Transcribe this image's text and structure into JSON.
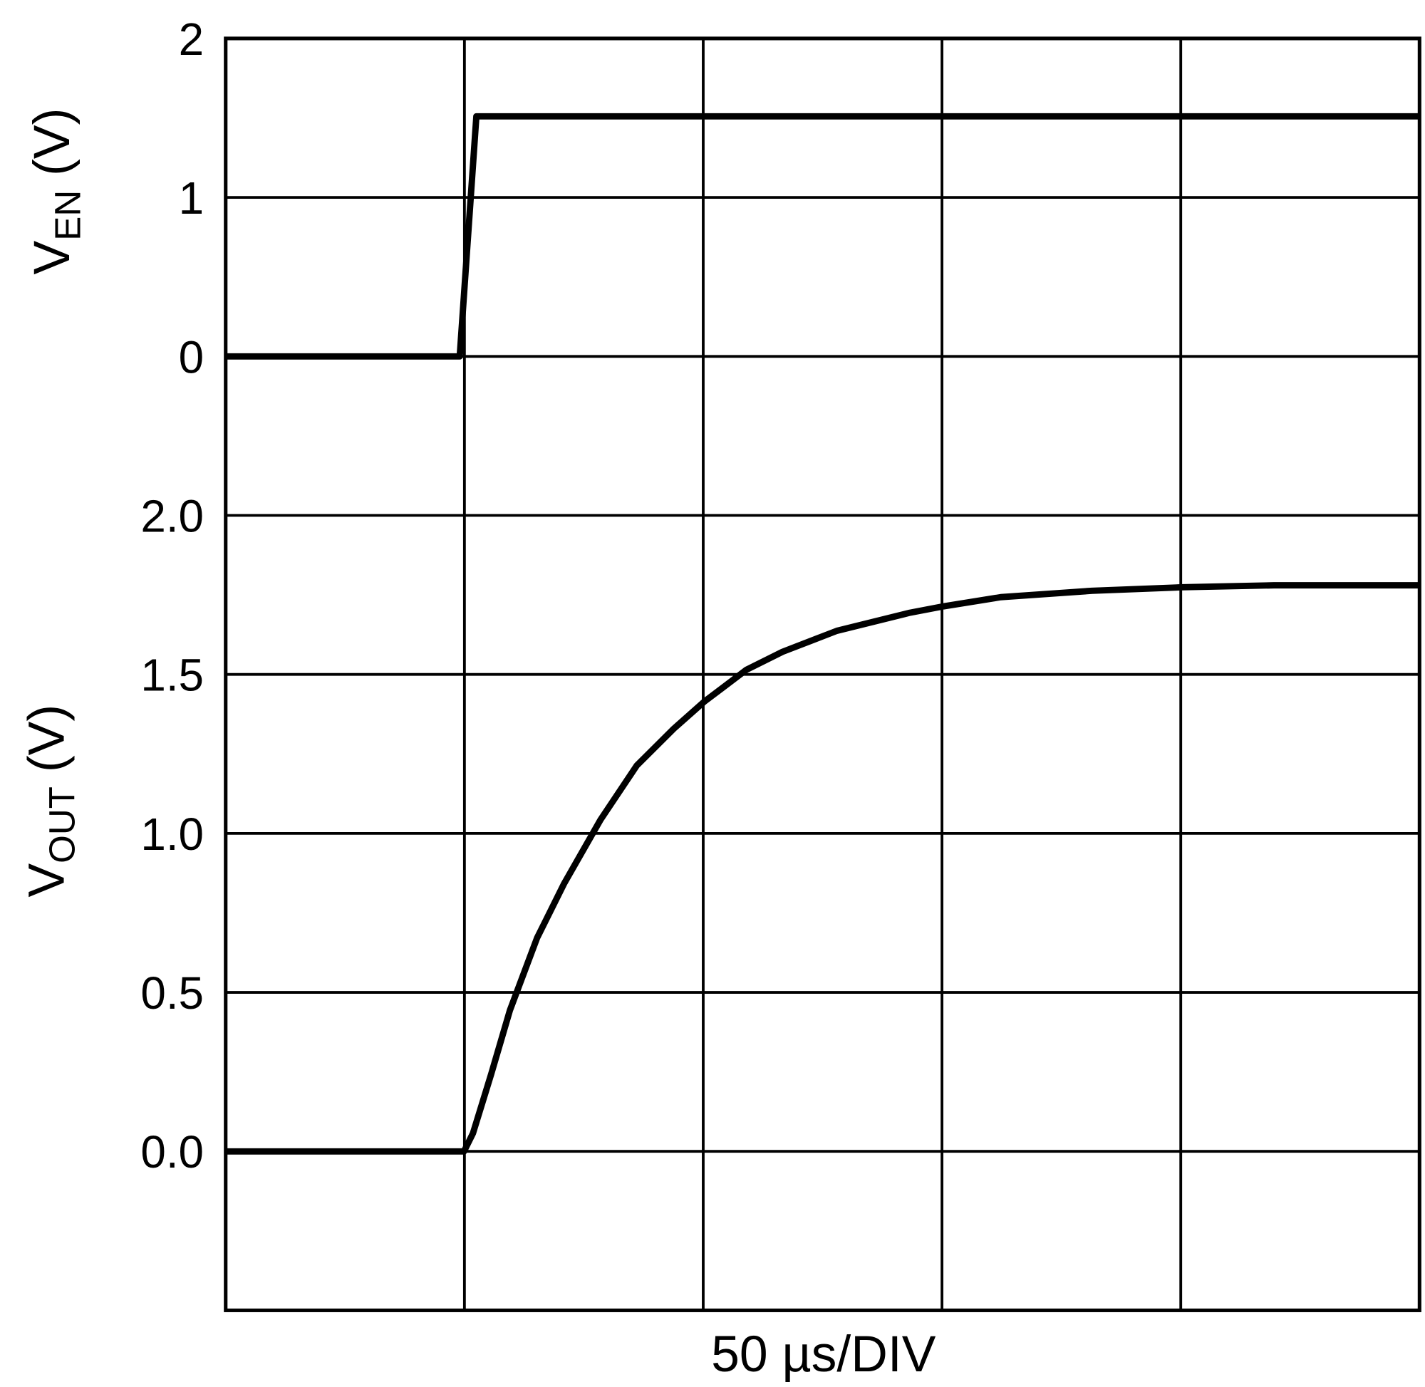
{
  "chart_data": {
    "type": "line",
    "title": "",
    "xlabel": "50 µs/DIV",
    "x_unit": "µs",
    "xlim": [
      0,
      250
    ],
    "x_divisions": 5,
    "grid": true,
    "panels": [
      {
        "name": "enable",
        "ylabel_main": "V",
        "ylabel_sub": "EN",
        "ylabel_unit": " (V)",
        "ticks": [
          {
            "value": 0,
            "label": "0"
          },
          {
            "value": 1,
            "label": "1"
          },
          {
            "value": 2,
            "label": "2"
          }
        ]
      },
      {
        "name": "output",
        "ylabel_main": "V",
        "ylabel_sub": "OUT",
        "ylabel_unit": " (V)",
        "ticks": [
          {
            "value": 0.0,
            "label": "0.0"
          },
          {
            "value": 0.5,
            "label": "0.5"
          },
          {
            "value": 1.0,
            "label": "1.0"
          },
          {
            "value": 1.5,
            "label": "1.5"
          },
          {
            "value": 2.0,
            "label": "2.0"
          }
        ]
      }
    ],
    "series": [
      {
        "name": "VEN",
        "panel": "enable",
        "x": [
          0,
          49,
          52.5,
          250
        ],
        "y": [
          0,
          0,
          1.51,
          1.51
        ]
      },
      {
        "name": "VOUT",
        "panel": "output",
        "x": [
          0,
          49.9,
          51.8,
          55.6,
          59.5,
          65.2,
          70.9,
          78.5,
          86.1,
          93.8,
          100.2,
          109,
          116.6,
          128,
          143.3,
          150.3,
          162.3,
          181.4,
          200.5,
          219.5,
          250
        ],
        "y": [
          0,
          0,
          0.057,
          0.243,
          0.443,
          0.671,
          0.843,
          1.043,
          1.214,
          1.329,
          1.414,
          1.514,
          1.571,
          1.637,
          1.694,
          1.714,
          1.743,
          1.763,
          1.774,
          1.78,
          1.78
        ]
      }
    ]
  }
}
